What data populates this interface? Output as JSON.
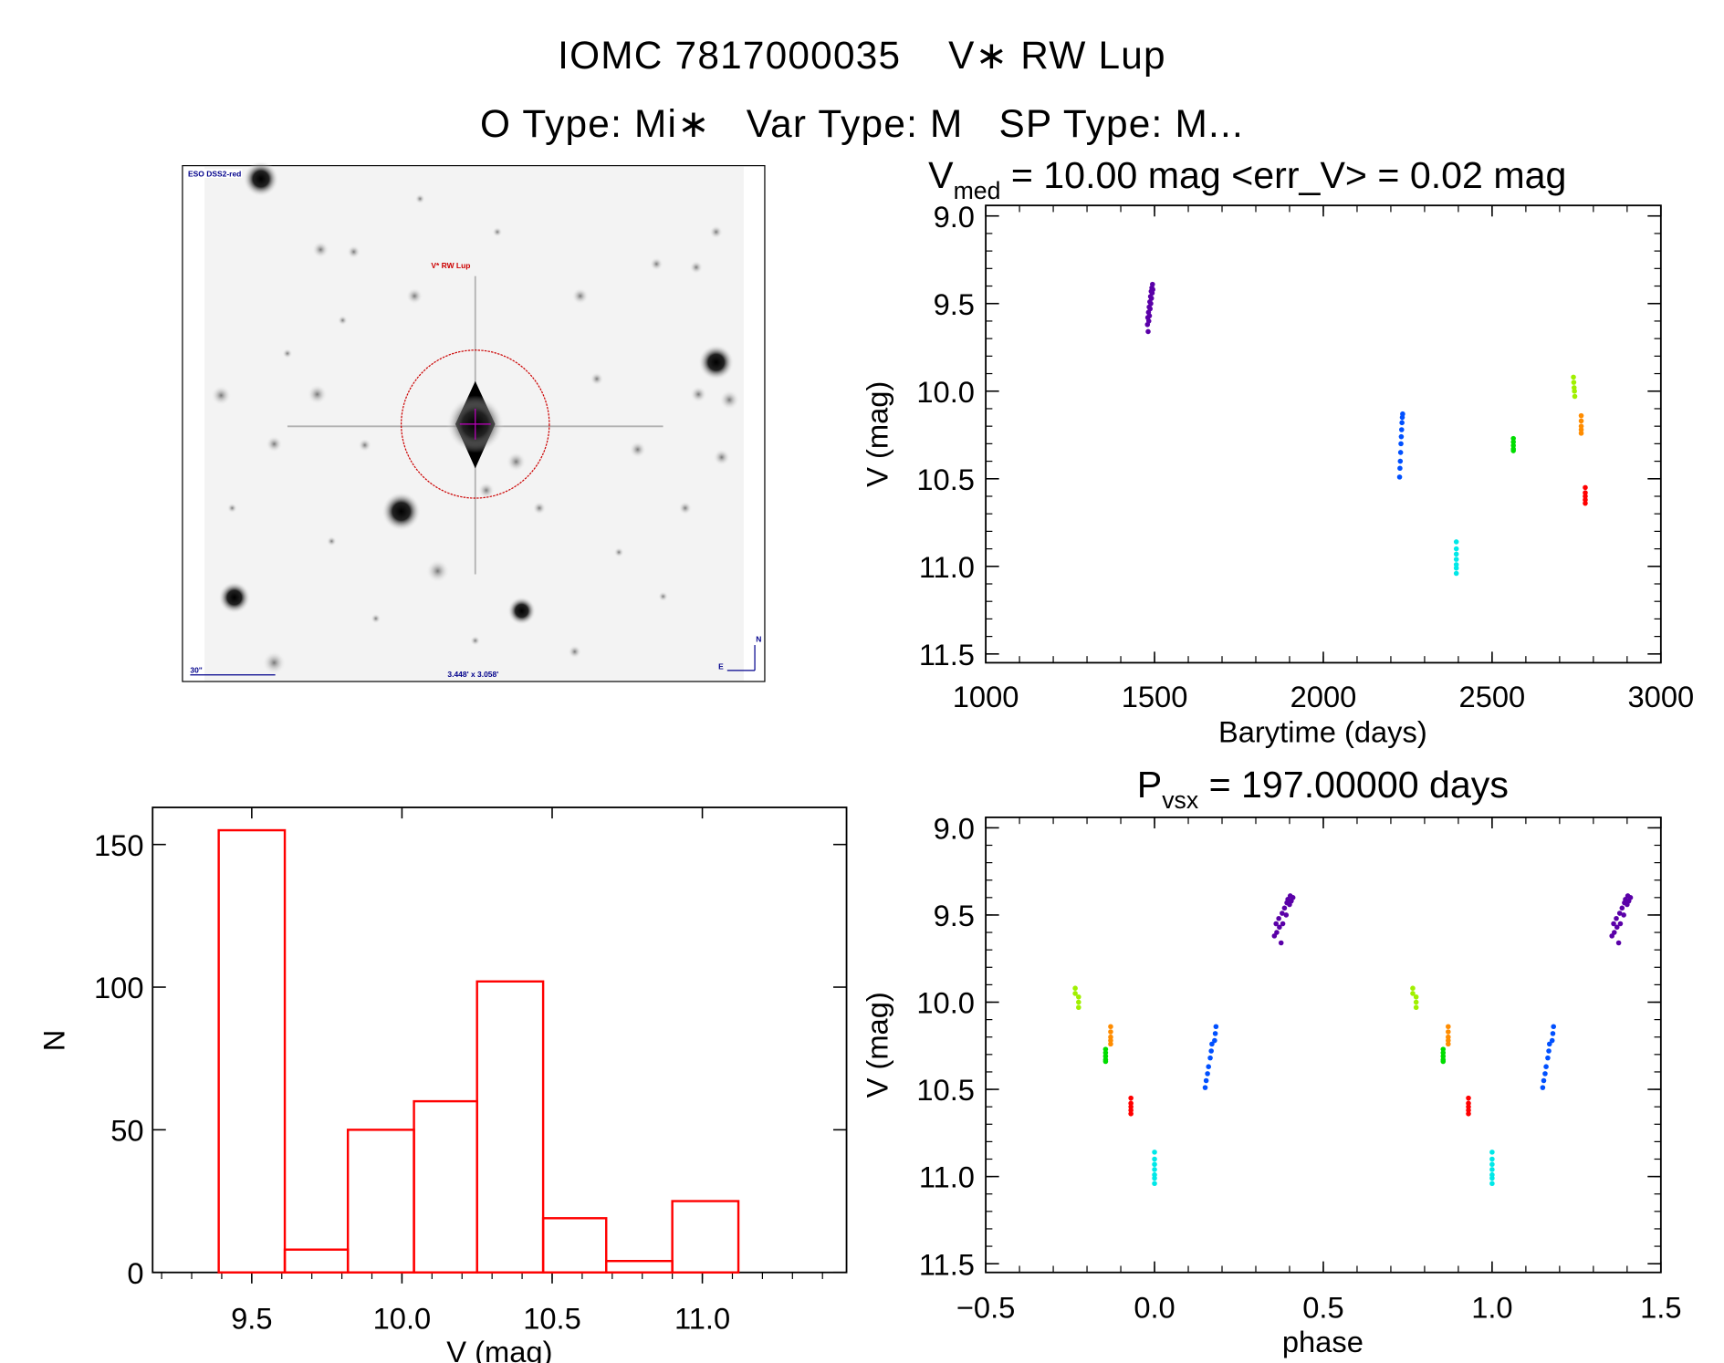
{
  "header": {
    "title": "IOMC 7817000035    V∗ RW Lup",
    "subtitle": "O Type: Mi∗   Var Type: M   SP Type: M..."
  },
  "sky_image": {
    "survey_label": "ESO DSS2-red",
    "target_label": "V* RW Lup",
    "scale_label": "30\"",
    "fov_label": "3.448' x 3.058'",
    "north_label": "N",
    "east_label": "E",
    "target_marker_color": "#cc0000",
    "label_color": "#00008b"
  },
  "chart_data": [
    {
      "type": "scatter",
      "title_main": "V",
      "title_sub": "med",
      "title_rest": " = 10.00 mag <err_V> = 0.02 mag",
      "xlabel": "Barytime (days)",
      "ylabel": "V (mag)",
      "xlim": [
        1000,
        3000
      ],
      "ylim": [
        11.55,
        8.94
      ],
      "y_reversed": true,
      "xticks": [
        "1000",
        "1500",
        "2000",
        "2500",
        "3000"
      ],
      "yticks": [
        "9.0",
        "9.5",
        "10.0",
        "10.5",
        "11.0",
        "11.5"
      ],
      "series": [
        {
          "color": "#5a00a8",
          "points": [
            [
              1479,
              9.62
            ],
            [
              1480,
              9.58
            ],
            [
              1481,
              9.66
            ],
            [
              1482,
              9.55
            ],
            [
              1483,
              9.6
            ],
            [
              1484,
              9.52
            ],
            [
              1485,
              9.57
            ],
            [
              1486,
              9.49
            ],
            [
              1487,
              9.53
            ],
            [
              1488,
              9.46
            ],
            [
              1489,
              9.5
            ],
            [
              1490,
              9.43
            ],
            [
              1491,
              9.47
            ],
            [
              1492,
              9.41
            ],
            [
              1493,
              9.44
            ],
            [
              1494,
              9.39
            ],
            [
              1495,
              9.42
            ]
          ]
        },
        {
          "color": "#0050ff",
          "points": [
            [
              2226,
              10.49
            ],
            [
              2227,
              10.44
            ],
            [
              2228,
              10.4
            ],
            [
              2229,
              10.35
            ],
            [
              2230,
              10.3
            ],
            [
              2231,
              10.26
            ],
            [
              2232,
              10.22
            ],
            [
              2233,
              10.18
            ],
            [
              2234,
              10.15
            ],
            [
              2235,
              10.13
            ]
          ]
        },
        {
          "color": "#00e8e8",
          "points": [
            [
              2394,
              10.86
            ],
            [
              2394,
              10.9
            ],
            [
              2394,
              10.93
            ],
            [
              2394,
              10.96
            ],
            [
              2394,
              10.99
            ],
            [
              2394,
              11.01
            ],
            [
              2394,
              11.04
            ]
          ]
        },
        {
          "color": "#00dd00",
          "points": [
            [
              2563,
              10.27
            ],
            [
              2563,
              10.29
            ],
            [
              2563,
              10.31
            ],
            [
              2563,
              10.33
            ],
            [
              2563,
              10.34
            ]
          ]
        },
        {
          "color": "#a0f000",
          "points": [
            [
              2741,
              9.92
            ],
            [
              2742,
              9.95
            ],
            [
              2743,
              9.98
            ],
            [
              2744,
              10.0
            ],
            [
              2745,
              10.03
            ]
          ]
        },
        {
          "color": "#ff8c00",
          "points": [
            [
              2764,
              10.14
            ],
            [
              2764,
              10.17
            ],
            [
              2764,
              10.2
            ],
            [
              2764,
              10.22
            ],
            [
              2764,
              10.24
            ]
          ]
        },
        {
          "color": "#ff0000",
          "points": [
            [
              2776,
              10.55
            ],
            [
              2776,
              10.58
            ],
            [
              2776,
              10.6
            ],
            [
              2776,
              10.62
            ],
            [
              2776,
              10.64
            ]
          ]
        }
      ]
    },
    {
      "type": "scatter",
      "title_main": "P",
      "title_sub": "vsx",
      "title_rest": " = 197.00000 days",
      "xlabel": "phase",
      "ylabel": "V (mag)",
      "xlim": [
        -0.5,
        1.5
      ],
      "ylim": [
        11.55,
        8.94
      ],
      "y_reversed": true,
      "phase_repeated_plus_one": true,
      "xticks": [
        "−0.5",
        "0.0",
        "0.5",
        "1.0",
        "1.5"
      ],
      "yticks": [
        "9.0",
        "9.5",
        "10.0",
        "10.5",
        "11.0",
        "11.5"
      ],
      "series": [
        {
          "color": "#5a00a8",
          "points": [
            [
              0.355,
              9.62
            ],
            [
              0.36,
              9.55
            ],
            [
              0.362,
              9.6
            ],
            [
              0.368,
              9.52
            ],
            [
              0.37,
              9.57
            ],
            [
              0.375,
              9.66
            ],
            [
              0.378,
              9.49
            ],
            [
              0.38,
              9.55
            ],
            [
              0.385,
              9.46
            ],
            [
              0.39,
              9.5
            ],
            [
              0.392,
              9.43
            ],
            [
              0.395,
              9.41
            ],
            [
              0.4,
              9.44
            ],
            [
              0.402,
              9.39
            ],
            [
              0.405,
              9.42
            ],
            [
              0.41,
              9.4
            ]
          ]
        },
        {
          "color": "#0050ff",
          "points": [
            [
              0.15,
              10.49
            ],
            [
              0.153,
              10.45
            ],
            [
              0.157,
              10.41
            ],
            [
              0.16,
              10.37
            ],
            [
              0.165,
              10.32
            ],
            [
              0.168,
              10.28
            ],
            [
              0.17,
              10.24
            ],
            [
              0.178,
              10.22
            ],
            [
              0.18,
              10.18
            ],
            [
              0.182,
              10.14
            ]
          ]
        },
        {
          "color": "#00e8e8",
          "points": [
            [
              0.0,
              10.86
            ],
            [
              0.0,
              10.9
            ],
            [
              0.0,
              10.93
            ],
            [
              0.0,
              10.96
            ],
            [
              0.0,
              10.99
            ],
            [
              0.0,
              11.01
            ],
            [
              0.0,
              11.04
            ]
          ]
        },
        {
          "color": "#00dd00",
          "points": [
            [
              -0.145,
              10.27
            ],
            [
              -0.145,
              10.29
            ],
            [
              -0.145,
              10.31
            ],
            [
              -0.145,
              10.33
            ],
            [
              -0.145,
              10.34
            ]
          ]
        },
        {
          "color": "#a0f000",
          "points": [
            [
              -0.235,
              9.92
            ],
            [
              -0.235,
              9.95
            ],
            [
              -0.225,
              9.97
            ],
            [
              -0.225,
              10.0
            ],
            [
              -0.225,
              10.03
            ]
          ]
        },
        {
          "color": "#ff8c00",
          "points": [
            [
              -0.13,
              10.14
            ],
            [
              -0.13,
              10.17
            ],
            [
              -0.13,
              10.2
            ],
            [
              -0.13,
              10.22
            ],
            [
              -0.13,
              10.24
            ]
          ]
        },
        {
          "color": "#ff0000",
          "points": [
            [
              -0.07,
              10.55
            ],
            [
              -0.07,
              10.58
            ],
            [
              -0.07,
              10.6
            ],
            [
              -0.07,
              10.62
            ],
            [
              -0.07,
              10.64
            ]
          ]
        }
      ]
    },
    {
      "type": "bar",
      "subtype": "histogram",
      "xlabel": "V (mag)",
      "ylabel": "N",
      "xlim": [
        9.17,
        11.48
      ],
      "ylim": [
        0,
        163
      ],
      "bin_edges": [
        9.39,
        9.61,
        9.82,
        10.04,
        10.25,
        10.47,
        10.68,
        10.9,
        11.12
      ],
      "values": [
        155,
        8,
        50,
        60,
        102,
        19,
        4,
        25
      ],
      "bar_color": "#ff0000",
      "xticks": [
        "9.5",
        "10.0",
        "10.5",
        "11.0"
      ],
      "yticks": [
        "0",
        "50",
        "100",
        "150"
      ]
    }
  ]
}
